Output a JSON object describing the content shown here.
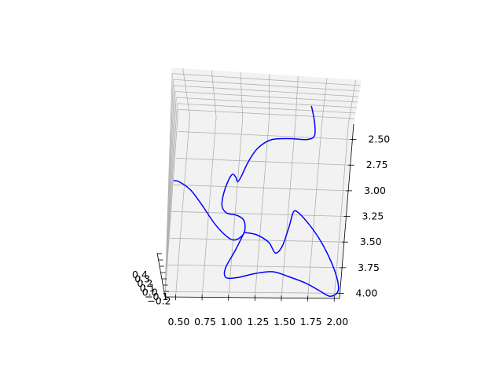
{
  "chart_data": {
    "type": "line",
    "projection": "3d",
    "title": "",
    "xlabel": "",
    "ylabel": "",
    "zlabel": "",
    "grid": true,
    "pane_color": "#f2f2f2",
    "x_ticks": [
      "0.50",
      "0.75",
      "1.00",
      "1.25",
      "1.50",
      "1.75",
      "2.00"
    ],
    "y_ticks": [
      "2.50",
      "2.75",
      "3.00",
      "3.25",
      "3.50",
      "3.75",
      "4.00"
    ],
    "z_ticks": [
      "0.4",
      "0.3",
      "0.2",
      "0.1",
      "0.0",
      "−0.1",
      "−0.2"
    ],
    "series": [
      {
        "color": "#0000ff",
        "line_width": 1.5,
        "points": [
          {
            "x": 1.64,
            "y": 2.2
          },
          {
            "x": 1.68,
            "y": 2.35
          },
          {
            "x": 1.69,
            "y": 2.48
          },
          {
            "x": 1.62,
            "y": 2.52
          },
          {
            "x": 1.45,
            "y": 2.52
          },
          {
            "x": 1.28,
            "y": 2.54
          },
          {
            "x": 1.16,
            "y": 2.63
          },
          {
            "x": 1.08,
            "y": 2.77
          },
          {
            "x": 1.03,
            "y": 2.9
          },
          {
            "x": 1.0,
            "y": 2.95
          },
          {
            "x": 0.98,
            "y": 2.91
          },
          {
            "x": 0.95,
            "y": 2.88
          },
          {
            "x": 0.92,
            "y": 2.92
          },
          {
            "x": 0.88,
            "y": 3.05
          },
          {
            "x": 0.87,
            "y": 3.18
          },
          {
            "x": 0.92,
            "y": 3.25
          },
          {
            "x": 1.02,
            "y": 3.27
          },
          {
            "x": 1.09,
            "y": 3.32
          },
          {
            "x": 1.1,
            "y": 3.43
          },
          {
            "x": 1.03,
            "y": 3.5
          },
          {
            "x": 0.95,
            "y": 3.48
          },
          {
            "x": 0.82,
            "y": 3.36
          },
          {
            "x": 0.68,
            "y": 3.18
          },
          {
            "x": 0.56,
            "y": 3.04
          },
          {
            "x": 0.45,
            "y": 2.97
          },
          {
            "x": 0.4,
            "y": 2.96
          }
        ],
        "points_b": [
          {
            "x": 1.1,
            "y": 3.43
          },
          {
            "x": 1.22,
            "y": 3.45
          },
          {
            "x": 1.34,
            "y": 3.52
          },
          {
            "x": 1.41,
            "y": 3.62
          },
          {
            "x": 1.47,
            "y": 3.55
          },
          {
            "x": 1.52,
            "y": 3.36
          },
          {
            "x": 1.55,
            "y": 3.22
          },
          {
            "x": 1.6,
            "y": 3.23
          },
          {
            "x": 1.7,
            "y": 3.33
          },
          {
            "x": 1.81,
            "y": 3.47
          },
          {
            "x": 1.92,
            "y": 3.65
          },
          {
            "x": 2.01,
            "y": 3.85
          },
          {
            "x": 2.03,
            "y": 3.98
          },
          {
            "x": 1.96,
            "y": 4.03
          },
          {
            "x": 1.86,
            "y": 3.98
          },
          {
            "x": 1.73,
            "y": 3.91
          },
          {
            "x": 1.57,
            "y": 3.85
          },
          {
            "x": 1.4,
            "y": 3.8
          },
          {
            "x": 1.23,
            "y": 3.82
          },
          {
            "x": 1.07,
            "y": 3.86
          },
          {
            "x": 0.96,
            "y": 3.86
          },
          {
            "x": 0.95,
            "y": 3.77
          },
          {
            "x": 1.03,
            "y": 3.6
          },
          {
            "x": 1.1,
            "y": 3.43
          }
        ]
      }
    ]
  }
}
